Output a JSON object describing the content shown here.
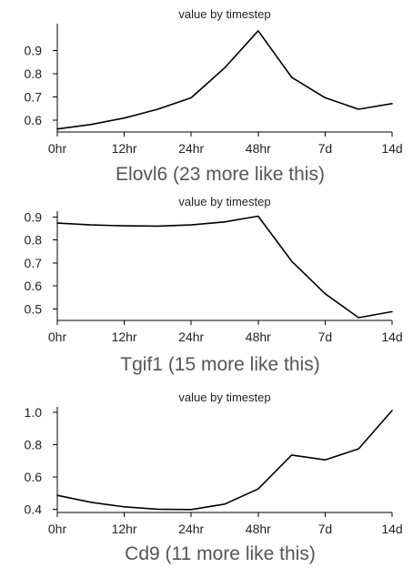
{
  "chart_data": [
    {
      "type": "line",
      "title": "value by timestep",
      "caption": "Elovl6 (23 more like this)",
      "xlabel": "",
      "ylabel": "",
      "x_tick_labels": [
        "0hr",
        "12hr",
        "24hr",
        "48hr",
        "7d",
        "14d"
      ],
      "y_ticks": [
        "0.6",
        "0.7",
        "0.8",
        "0.9"
      ],
      "ylim": [
        0.55,
        1.0
      ],
      "grid": false,
      "values": [
        0.563,
        0.582,
        0.61,
        0.648,
        0.697,
        0.826,
        0.985,
        0.785,
        0.697,
        0.648,
        0.672
      ]
    },
    {
      "type": "line",
      "title": "value by timestep",
      "caption": "Tgif1 (15 more like this)",
      "xlabel": "",
      "ylabel": "",
      "x_tick_labels": [
        "0hr",
        "12hr",
        "24hr",
        "48hr",
        "7d",
        "14d"
      ],
      "y_ticks": [
        "0.5",
        "0.6",
        "0.7",
        "0.8",
        "0.9"
      ],
      "ylim": [
        0.45,
        0.91
      ],
      "grid": false,
      "values": [
        0.874,
        0.866,
        0.862,
        0.861,
        0.866,
        0.879,
        0.904,
        0.708,
        0.566,
        0.462,
        0.488
      ]
    },
    {
      "type": "line",
      "title": "value by timestep",
      "caption": "Cd9 (11 more like this)",
      "xlabel": "",
      "ylabel": "",
      "x_tick_labels": [
        "0hr",
        "12hr",
        "24hr",
        "48hr",
        "7d",
        "14d"
      ],
      "y_ticks": [
        "0.4",
        "0.6",
        "0.8",
        "1.0"
      ],
      "ylim": [
        0.38,
        1.01
      ],
      "grid": false,
      "values": [
        0.486,
        0.443,
        0.415,
        0.4,
        0.398,
        0.432,
        0.525,
        0.735,
        0.705,
        0.773,
        1.01
      ]
    }
  ]
}
